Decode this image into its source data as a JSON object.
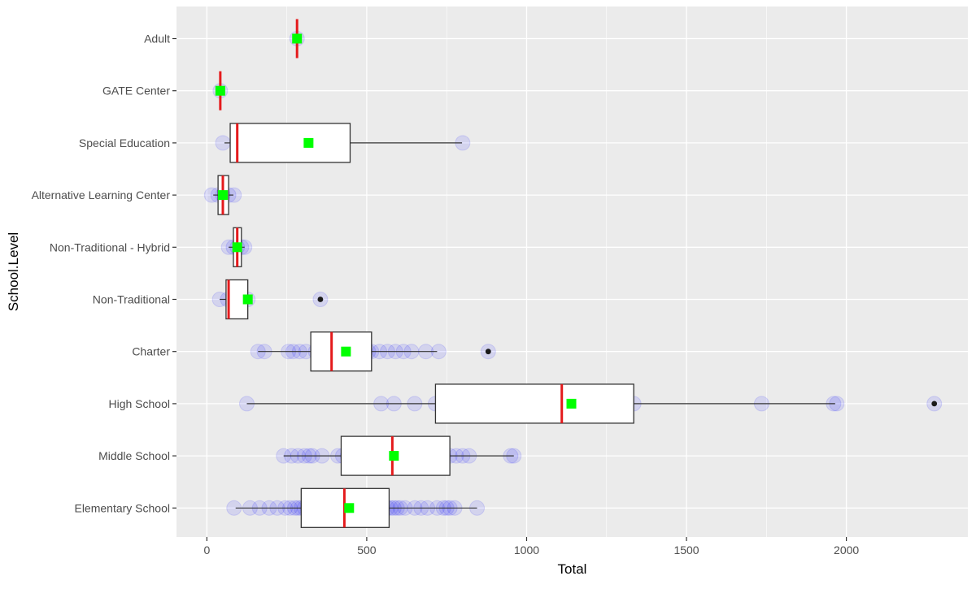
{
  "chart_data": {
    "type": "boxplot",
    "orientation": "horizontal",
    "title": "",
    "xlabel": "Total",
    "ylabel": "School.Level",
    "xlim": [
      -95,
      2380
    ],
    "x_ticks": [
      0,
      500,
      1000,
      1500,
      2000
    ],
    "x_tick_labels": [
      "0",
      "500",
      "1000",
      "1500",
      "2000"
    ],
    "grid": true,
    "legend": "none",
    "colors": {
      "panel": "#ebebeb",
      "grid": "#ffffff",
      "box_fill": "#ffffff",
      "box_stroke": "#333333",
      "median": "#e41a1c",
      "mean": "#00ff00",
      "points": "#0000ff",
      "outliers": "#1a1a1a"
    },
    "categories": [
      "Elementary School",
      "Middle School",
      "High School",
      "Charter",
      "Non-Traditional",
      "Non-Traditional - Hybrid",
      "Alternative Learning Center",
      "Special Education",
      "GATE Center",
      "Adult"
    ],
    "groups": [
      {
        "label": "Elementary School",
        "stats": {
          "min": 90,
          "q1": 295,
          "median": 430,
          "q3": 570,
          "max": 845,
          "mean": 445
        },
        "outliers": [],
        "points": [
          85,
          135,
          165,
          195,
          220,
          245,
          260,
          275,
          285,
          295,
          305,
          315,
          325,
          335,
          345,
          355,
          365,
          375,
          385,
          395,
          405,
          410,
          420,
          430,
          440,
          450,
          460,
          470,
          480,
          490,
          500,
          505,
          515,
          525,
          545,
          565,
          575,
          585,
          595,
          605,
          620,
          650,
          670,
          690,
          720,
          740,
          750,
          760,
          775,
          845
        ]
      },
      {
        "label": "Middle School",
        "stats": {
          "min": 240,
          "q1": 420,
          "median": 580,
          "q3": 760,
          "max": 960,
          "mean": 585
        },
        "outliers": [],
        "points": [
          240,
          265,
          285,
          305,
          320,
          330,
          360,
          410,
          425,
          440,
          480,
          530,
          560,
          570,
          580,
          590,
          600,
          630,
          665,
          680,
          700,
          740,
          760,
          780,
          800,
          820,
          950,
          960
        ]
      },
      {
        "label": "High School",
        "stats": {
          "min": 125,
          "q1": 715,
          "median": 1110,
          "q3": 1335,
          "max": 1965,
          "mean": 1140
        },
        "outliers": [
          2275
        ],
        "points": [
          125,
          545,
          585,
          650,
          715,
          785,
          905,
          990,
          1100,
          1165,
          1205,
          1265,
          1335,
          1735,
          1960,
          1970,
          2275
        ]
      },
      {
        "label": "Charter",
        "stats": {
          "min": 160,
          "q1": 325,
          "median": 390,
          "q3": 515,
          "max": 720,
          "mean": 435
        },
        "outliers": [
          880
        ],
        "points": [
          160,
          180,
          255,
          270,
          290,
          310,
          340,
          355,
          370,
          385,
          400,
          420,
          440,
          470,
          505,
          515,
          540,
          565,
          590,
          615,
          640,
          685,
          725,
          880
        ]
      },
      {
        "label": "Non-Traditional",
        "stats": {
          "min": 40,
          "q1": 60,
          "median": 68,
          "q3": 128,
          "max": 128,
          "mean": 128
        },
        "outliers": [
          355
        ],
        "points": [
          40,
          65,
          128,
          355
        ]
      },
      {
        "label": "Non-Traditional - Hybrid",
        "stats": {
          "min": 68,
          "q1": 83,
          "median": 95,
          "q3": 108,
          "max": 118,
          "mean": 95
        },
        "outliers": [],
        "points": [
          68,
          83,
          95,
          108,
          118
        ]
      },
      {
        "label": "Alternative Learning Center",
        "stats": {
          "min": 20,
          "q1": 35,
          "median": 50,
          "q3": 68,
          "max": 83,
          "mean": 50
        },
        "outliers": [],
        "points": [
          15,
          35,
          50,
          68,
          85
        ]
      },
      {
        "label": "Special Education",
        "stats": {
          "min": 55,
          "q1": 73,
          "median": 95,
          "q3": 448,
          "max": 798,
          "mean": 318
        },
        "outliers": [],
        "points": [
          50,
          95,
          800
        ]
      },
      {
        "label": "GATE Center",
        "stats": {
          "min": 42,
          "q1": 42,
          "median": 42,
          "q3": 42,
          "max": 42,
          "mean": 42
        },
        "outliers": [],
        "points": [
          42
        ]
      },
      {
        "label": "Adult",
        "stats": {
          "min": 282,
          "q1": 282,
          "median": 282,
          "q3": 282,
          "max": 282,
          "mean": 282
        },
        "outliers": [],
        "points": [
          282
        ]
      }
    ]
  }
}
